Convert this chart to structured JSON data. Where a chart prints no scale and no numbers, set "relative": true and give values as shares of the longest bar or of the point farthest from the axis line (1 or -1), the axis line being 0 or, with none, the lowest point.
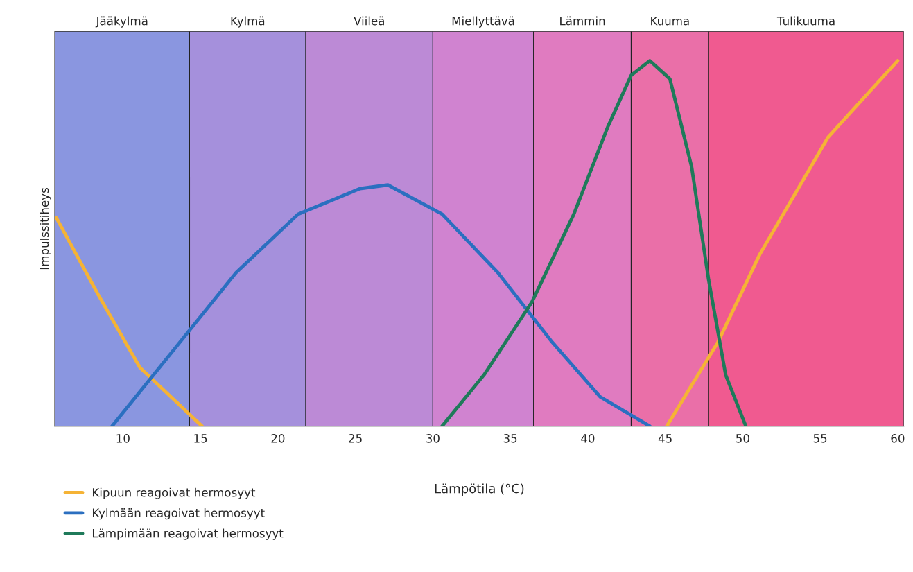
{
  "chart_data": {
    "type": "line",
    "relative": true,
    "xlabel": "Lämpötila (°C)",
    "ylabel": "Impulssitiheys",
    "xlim": [
      5.6,
      60.4
    ],
    "xticks": [
      10,
      15,
      20,
      25,
      30,
      35,
      40,
      45,
      50,
      55,
      60
    ],
    "series": [
      {
        "name": "Kipuun reagoivat hermosyyt",
        "color": "#f5b335",
        "x": [
          5.7,
          8.4,
          11.1,
          15.1,
          30,
          45.1,
          48.4,
          51.1,
          55.5,
          60
        ],
        "values": [
          0.57,
          0.36,
          0.16,
          0,
          null,
          0,
          0.23,
          0.47,
          0.79,
          1.0
        ]
      },
      {
        "name": "Kylmään reagoivat hermosyyt",
        "color": "#2b6fc0",
        "x": [
          9.3,
          13.3,
          17.3,
          21.3,
          25.3,
          27.1,
          30.6,
          34.2,
          37.7,
          40.8,
          44.0
        ],
        "values": [
          0,
          0.21,
          0.42,
          0.58,
          0.65,
          0.66,
          0.58,
          0.42,
          0.23,
          0.08,
          0
        ]
      },
      {
        "name": "Lämpimään reagoivat hermosyyt",
        "color": "#1f7a5a",
        "x": [
          30.6,
          33.3,
          36.4,
          39.1,
          41.3,
          42.8,
          44.0,
          45.3,
          46.7,
          47.8,
          48.9,
          50.2
        ],
        "values": [
          0,
          0.14,
          0.34,
          0.58,
          0.82,
          0.96,
          1.0,
          0.95,
          0.71,
          0.4,
          0.14,
          0
        ]
      }
    ],
    "bands": [
      {
        "axis": "x",
        "from": 5.6,
        "to": 14.3,
        "label": "Jääkylmä",
        "color": "#8a96e0"
      },
      {
        "axis": "x",
        "from": 14.3,
        "to": 21.8,
        "label": "Kylmä",
        "color": "#a590dc"
      },
      {
        "axis": "x",
        "from": 21.8,
        "to": 30.0,
        "label": "Viileä",
        "color": "#bc8ad6"
      },
      {
        "axis": "x",
        "from": 30.0,
        "to": 36.5,
        "label": "Miellyttävä",
        "color": "#d083d0"
      },
      {
        "axis": "x",
        "from": 36.5,
        "to": 42.8,
        "label": "Lämmin",
        "color": "#e07bc0"
      },
      {
        "axis": "x",
        "from": 42.8,
        "to": 47.8,
        "label": "Kuuma",
        "color": "#ea6fa8"
      },
      {
        "axis": "x",
        "from": 47.8,
        "to": 60.4,
        "label": "Tulikuuma",
        "color": "#f05a90"
      }
    ],
    "legend": "bottom left",
    "grid": false,
    "marker": "none",
    "line_style": "solid"
  }
}
